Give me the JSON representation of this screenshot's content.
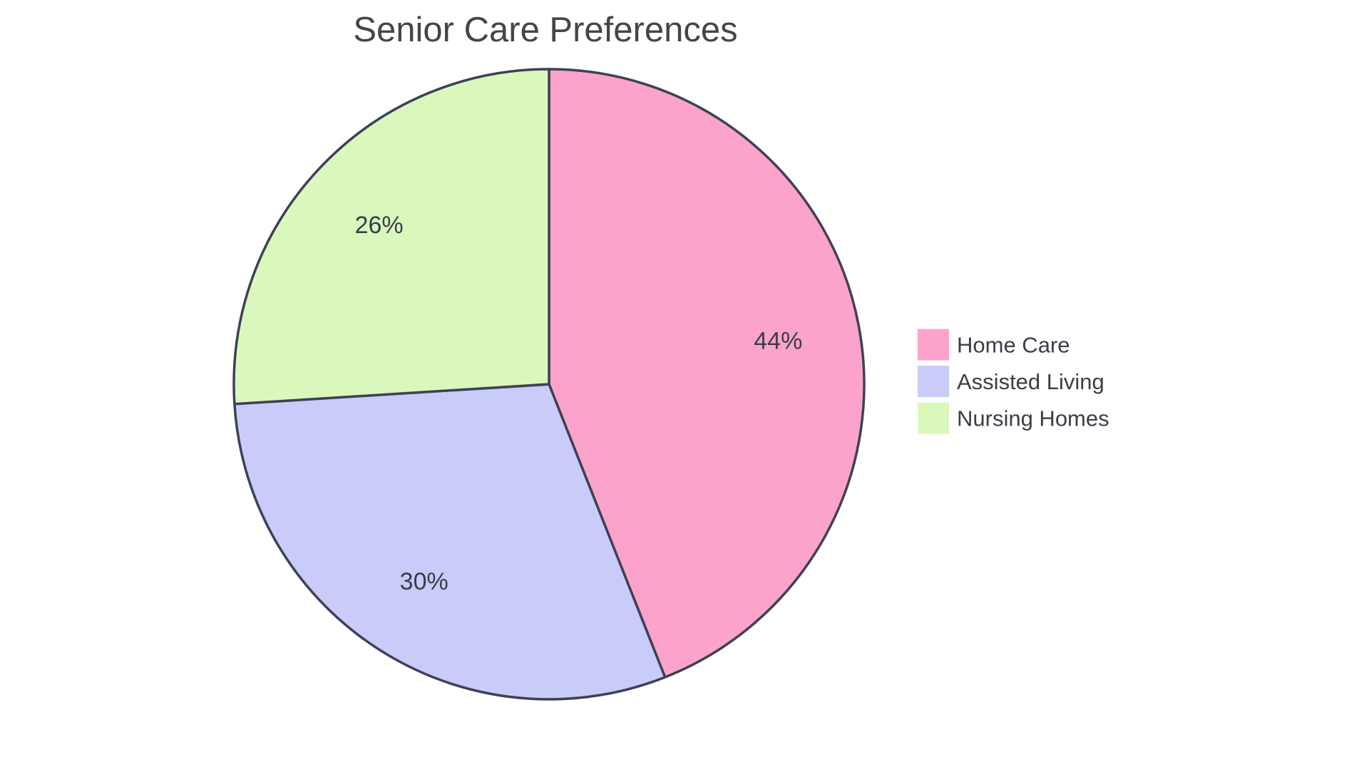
{
  "chart_data": {
    "type": "pie",
    "title": "Senior Care Preferences",
    "categories": [
      "Home Care",
      "Assisted Living",
      "Nursing Homes"
    ],
    "values": [
      44,
      30,
      26
    ],
    "slice_labels": [
      "44%",
      "30%",
      "26%"
    ],
    "colors": [
      "#FCA3CB",
      "#C9CBF8",
      "#DAF8BC"
    ],
    "start_angle_deg": 0,
    "direction": "clockwise",
    "legend_position": "right",
    "background_color": "#FFFFFF",
    "slice_border_color": "#3E4156",
    "title_color": "#454549",
    "label_color": "#3A3D48",
    "legend_text_color": "#3C3E47"
  }
}
